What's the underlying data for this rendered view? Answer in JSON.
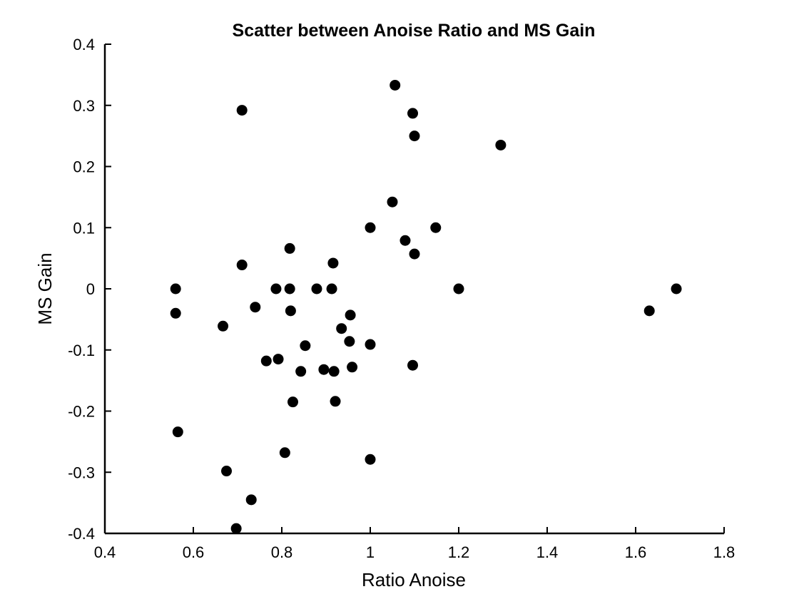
{
  "chart_data": {
    "type": "scatter",
    "title": "Scatter between Anoise Ratio and MS Gain",
    "xlabel": "Ratio Anoise",
    "ylabel": "MS Gain",
    "xlim": [
      0.4,
      1.8
    ],
    "ylim": [
      -0.4,
      0.4
    ],
    "xticks": [
      "0.4",
      "0.6",
      "0.8",
      "1",
      "1.2",
      "1.4",
      "1.6",
      "1.8"
    ],
    "yticks": [
      "-0.4",
      "-0.3",
      "-0.2",
      "-0.1",
      "0",
      "0.1",
      "0.2",
      "0.3",
      "0.4"
    ],
    "grid": false,
    "marker_color": "#000000",
    "points": [
      {
        "x": 0.56,
        "y": 0.0
      },
      {
        "x": 0.56,
        "y": -0.04
      },
      {
        "x": 0.565,
        "y": -0.234
      },
      {
        "x": 0.667,
        "y": -0.061
      },
      {
        "x": 0.675,
        "y": -0.298
      },
      {
        "x": 0.697,
        "y": -0.392
      },
      {
        "x": 0.71,
        "y": 0.292
      },
      {
        "x": 0.71,
        "y": 0.039
      },
      {
        "x": 0.731,
        "y": -0.345
      },
      {
        "x": 0.74,
        "y": -0.03
      },
      {
        "x": 0.765,
        "y": -0.118
      },
      {
        "x": 0.787,
        "y": 0.0
      },
      {
        "x": 0.792,
        "y": -0.115
      },
      {
        "x": 0.807,
        "y": -0.268
      },
      {
        "x": 0.818,
        "y": 0.066
      },
      {
        "x": 0.818,
        "y": 0.0
      },
      {
        "x": 0.82,
        "y": -0.036
      },
      {
        "x": 0.825,
        "y": -0.185
      },
      {
        "x": 0.843,
        "y": -0.135
      },
      {
        "x": 0.853,
        "y": -0.093
      },
      {
        "x": 0.879,
        "y": 0.0
      },
      {
        "x": 0.895,
        "y": -0.132
      },
      {
        "x": 0.913,
        "y": 0.0
      },
      {
        "x": 0.916,
        "y": 0.042
      },
      {
        "x": 0.918,
        "y": -0.135
      },
      {
        "x": 0.921,
        "y": -0.184
      },
      {
        "x": 0.935,
        "y": -0.065
      },
      {
        "x": 0.953,
        "y": -0.086
      },
      {
        "x": 0.955,
        "y": -0.043
      },
      {
        "x": 0.959,
        "y": -0.128
      },
      {
        "x": 1.0,
        "y": 0.1
      },
      {
        "x": 1.0,
        "y": -0.091
      },
      {
        "x": 1.0,
        "y": -0.279
      },
      {
        "x": 1.05,
        "y": 0.142
      },
      {
        "x": 1.056,
        "y": 0.333
      },
      {
        "x": 1.079,
        "y": 0.079
      },
      {
        "x": 1.096,
        "y": 0.287
      },
      {
        "x": 1.096,
        "y": -0.125
      },
      {
        "x": 1.1,
        "y": 0.25
      },
      {
        "x": 1.1,
        "y": 0.057
      },
      {
        "x": 1.148,
        "y": 0.1
      },
      {
        "x": 1.2,
        "y": 0.0
      },
      {
        "x": 1.295,
        "y": 0.235
      },
      {
        "x": 1.631,
        "y": -0.036
      },
      {
        "x": 1.692,
        "y": 0.0
      }
    ]
  }
}
